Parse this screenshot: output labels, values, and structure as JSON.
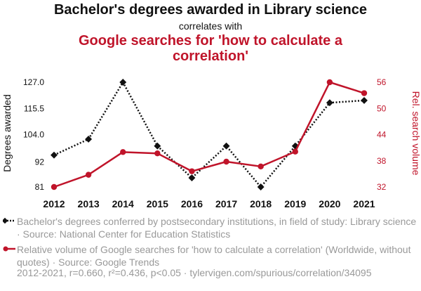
{
  "header": {
    "title": "Bachelor's degrees awarded in Library science",
    "subtitle": "correlates with",
    "title_red": "Google searches for 'how to calculate a correlation'"
  },
  "chart_data": {
    "type": "line",
    "x": [
      2012,
      2013,
      2014,
      2015,
      2016,
      2017,
      2018,
      2019,
      2020,
      2021
    ],
    "series": [
      {
        "name": "Bachelor's degrees conferred by postsecondary institutions, in field of study: Library science · Source: National Center for Education Statistics",
        "axis": "left",
        "color": "#111111",
        "marker": "diamond",
        "style": "dotted",
        "values": [
          95,
          102,
          127,
          99,
          85,
          99,
          81,
          99,
          118,
          119
        ]
      },
      {
        "name": "Relative volume of Google searches for 'how to calculate a correlation' (Worldwide, without quotes) · Source: Google Trends",
        "axis": "right",
        "color": "#c0142a",
        "marker": "circle",
        "style": "solid",
        "values": [
          32,
          34.8,
          40,
          39.7,
          35.6,
          37.8,
          36.7,
          40.1,
          56,
          53.5
        ]
      }
    ],
    "y_left": {
      "label": "Degrees awarded",
      "ticks": [
        81,
        92,
        104.0,
        115.5,
        127.0
      ],
      "tick_labels": [
        "81",
        "92",
        "104.0",
        "115.5",
        "127.0"
      ],
      "ylim": [
        81,
        127
      ]
    },
    "y_right": {
      "label": "Rel. search volume",
      "ticks": [
        32,
        38,
        44,
        50,
        56
      ],
      "tick_labels": [
        "32",
        "38",
        "44",
        "50",
        "56"
      ],
      "ylim": [
        32,
        56
      ]
    },
    "x_tick_labels": [
      "2012",
      "2013",
      "2014",
      "2015",
      "2016",
      "2017",
      "2018",
      "2019",
      "2020",
      "2021"
    ],
    "grid": false
  },
  "legend": {
    "line1": "Bachelor's degrees conferred by postsecondary institutions, in field of study: Library science · Source: National Center for Education Statistics",
    "line2": "Relative volume of Google searches for 'how to calculate a correlation' (Worldwide, without quotes) · Source: Google Trends"
  },
  "footer": "2012-2021, r=0.660, r²=0.436, p<0.05 · tylervigen.com/spurious/correlation/34095",
  "colors": {
    "black_series": "#111111",
    "red_series": "#c0142a",
    "muted_text": "#999999"
  }
}
